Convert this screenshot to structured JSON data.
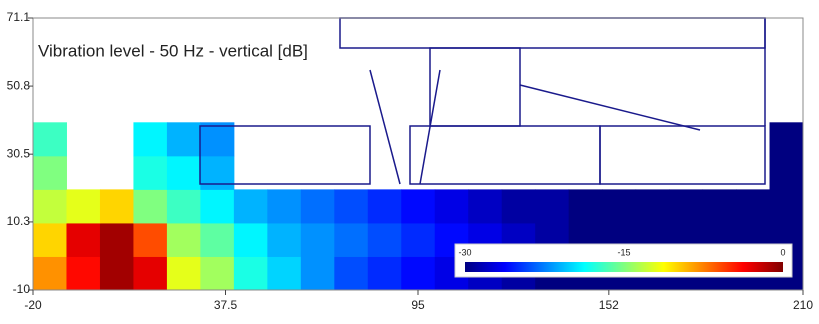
{
  "chart_data": {
    "type": "heatmap",
    "title": "Vibration level - 50 Hz - vertical [dB]",
    "x_edges": [
      -20,
      -10,
      0,
      10,
      20,
      30,
      40,
      50,
      60,
      70,
      80,
      90,
      100,
      110,
      120,
      130,
      140,
      150,
      160,
      170,
      180,
      190,
      200,
      210
    ],
    "y_edges": [
      -10,
      0,
      10,
      20,
      30,
      40
    ],
    "values": [
      [
        -8,
        -4,
        -1,
        -3,
        -12,
        -14,
        -18,
        -20,
        -22,
        -24,
        -25,
        -26,
        -27,
        -28,
        -29,
        -30,
        -30,
        -30,
        -30,
        -30,
        -30,
        -30,
        -30
      ],
      [
        -10,
        -3,
        -1,
        -6,
        -14,
        -16,
        -19,
        -21,
        -22,
        -23,
        -24,
        -25,
        -26,
        -27,
        -28,
        -29,
        -30,
        -30,
        -30,
        -30,
        -30,
        -30,
        -30
      ],
      [
        -13,
        -12,
        -10,
        -15,
        -17,
        -19,
        -21,
        -22,
        -23,
        -24,
        -25,
        -26,
        -27,
        -28,
        -29,
        -29,
        -30,
        -30,
        -30,
        -30,
        -30,
        -30,
        -30
      ],
      [
        -15,
        null,
        null,
        -18,
        -19,
        -21,
        null,
        null,
        null,
        null,
        null,
        null,
        null,
        null,
        null,
        null,
        null,
        null,
        null,
        null,
        null,
        null,
        -30
      ],
      [
        -17,
        null,
        null,
        -19,
        -21,
        -22,
        null,
        null,
        null,
        null,
        null,
        null,
        null,
        null,
        null,
        null,
        null,
        null,
        null,
        null,
        null,
        null,
        -30
      ]
    ],
    "color_scale": "jet",
    "clim": [
      -30,
      0
    ],
    "cticks": [
      -30,
      -15,
      0
    ],
    "xlim": [
      -20,
      210
    ],
    "xticks": [
      -20,
      37.5,
      95,
      152,
      210
    ],
    "ylim": [
      -10,
      71.1
    ],
    "yticks": [
      -10,
      10.3,
      30.5,
      50.8,
      71.1
    ]
  }
}
